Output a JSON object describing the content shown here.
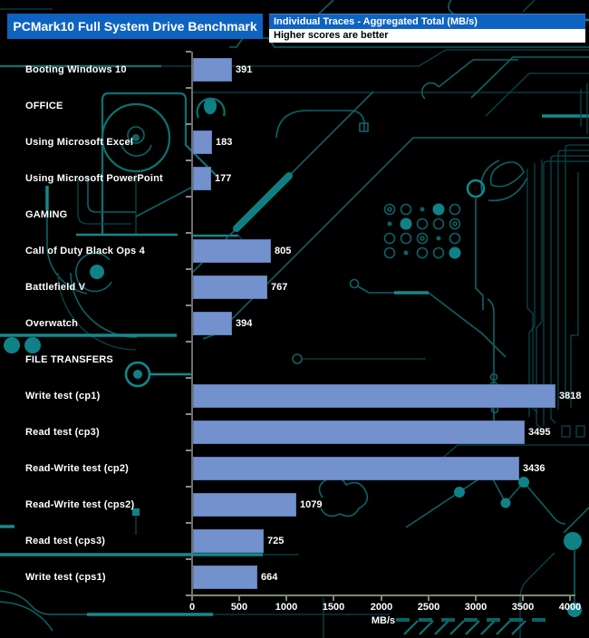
{
  "chart_data": {
    "type": "bar",
    "orientation": "horizontal",
    "title": "PCMark10 Full System Drive Benchmark",
    "legend_title": "Individual Traces - Aggregated Total (MB/s)",
    "subtitle": "Higher scores are better",
    "xlabel": "MB/s",
    "xlim": [
      0,
      4000
    ],
    "x_ticks": [
      0,
      500,
      1000,
      1500,
      2000,
      2500,
      3000,
      3500,
      4000
    ],
    "grid": false,
    "rows": [
      {
        "kind": "bar",
        "label": "Booting Windows 10",
        "value": 391
      },
      {
        "kind": "section",
        "label": "OFFICE"
      },
      {
        "kind": "bar",
        "label": "Using Microsoft Excel",
        "value": 183
      },
      {
        "kind": "bar",
        "label": "Using Microsoft PowerPoint",
        "value": 177
      },
      {
        "kind": "section",
        "label": "GAMING"
      },
      {
        "kind": "bar",
        "label": "Call of Duty Black Ops 4",
        "value": 805
      },
      {
        "kind": "bar",
        "label": "Battlefield V",
        "value": 767
      },
      {
        "kind": "bar",
        "label": "Overwatch",
        "value": 394
      },
      {
        "kind": "section",
        "label": "FILE TRANSFERS"
      },
      {
        "kind": "bar",
        "label": "Write test (cp1)",
        "value": 3818
      },
      {
        "kind": "bar",
        "label": "Read test (cp3)",
        "value": 3495
      },
      {
        "kind": "bar",
        "label": "Read-Write test (cp2)",
        "value": 3436
      },
      {
        "kind": "bar",
        "label": "Read-Write test (cps2)",
        "value": 1079
      },
      {
        "kind": "bar",
        "label": "Read test (cps3)",
        "value": 725
      },
      {
        "kind": "bar",
        "label": "Write test (cps1)",
        "value": 664
      }
    ]
  },
  "colors": {
    "background": "#000000",
    "header_blue": "#0f63c0",
    "header_text": "#ffffff",
    "subtitle_bg": "#ffffff",
    "subtitle_text": "#000000",
    "bar_fill": "#7392cd",
    "bar_border": "#5e7ab3",
    "label_text": "#ffffff",
    "x_axis_line": "#7b8a74",
    "y_axis_line": "#6f6f6f",
    "circuit_teal": "#0c6366",
    "circuit_teal_bright": "#12898c"
  }
}
